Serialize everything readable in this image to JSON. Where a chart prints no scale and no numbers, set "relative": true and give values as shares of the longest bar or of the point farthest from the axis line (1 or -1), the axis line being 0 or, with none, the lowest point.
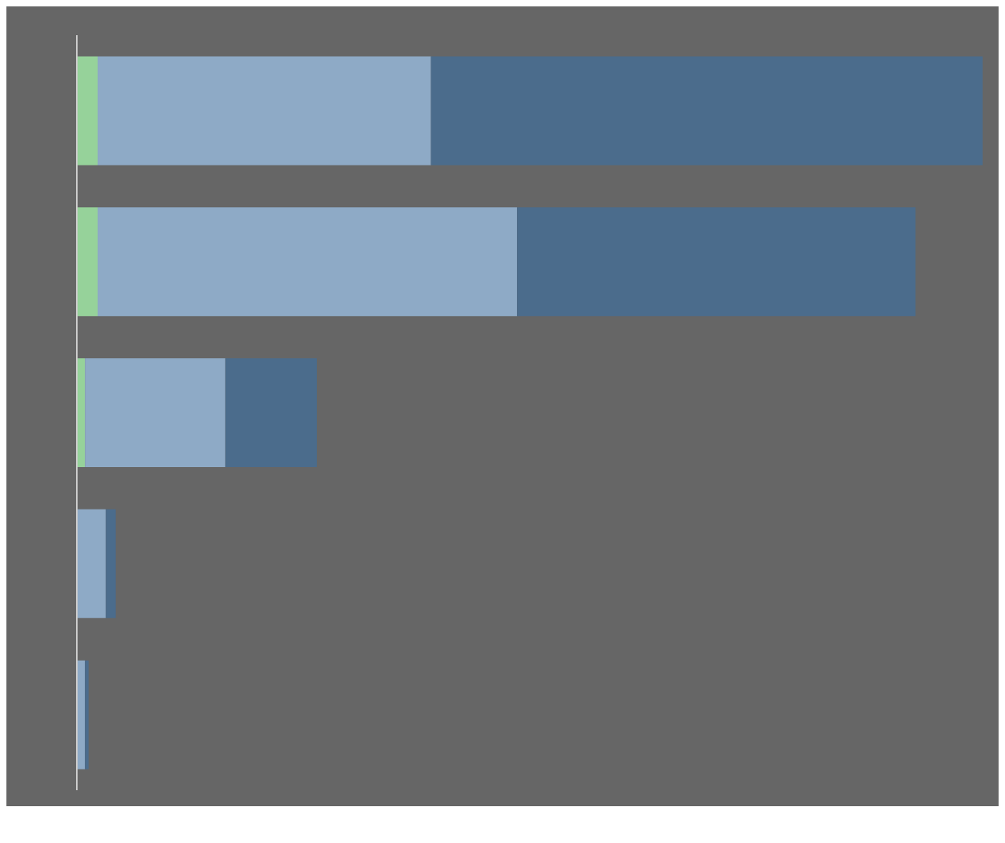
{
  "chart_data": {
    "type": "bar",
    "orientation": "horizontal",
    "stacked": true,
    "relative": true,
    "grid": false,
    "legend": false,
    "categories": [
      null,
      null,
      null,
      null,
      null
    ],
    "series": [
      {
        "color": "#96d29a",
        "values": [
          0.023,
          0.023,
          0.009,
          0,
          0
        ]
      },
      {
        "color": "#8eaac6",
        "values": [
          0.368,
          0.463,
          0.155,
          0.032,
          0.009
        ]
      },
      {
        "color": "#4b6c8c",
        "values": [
          0.609,
          0.44,
          0.101,
          0.011,
          0.004
        ]
      }
    ]
  }
}
